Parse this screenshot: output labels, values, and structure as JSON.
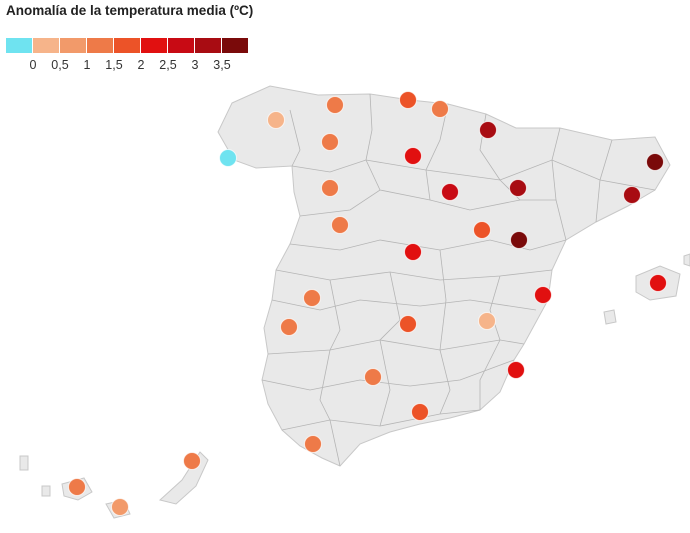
{
  "title": "Anomalía de la temperatura media (ºC)",
  "legend": {
    "colors": [
      "#6fe3f0",
      "#f6b48a",
      "#f29a6a",
      "#ee7a48",
      "#ec5328",
      "#e11010",
      "#c80a14",
      "#a80c12",
      "#7a0a0a"
    ],
    "ticks": [
      "0",
      "0,5",
      "1",
      "1,5",
      "2",
      "2,5",
      "3",
      "3,5"
    ]
  },
  "stations": [
    {
      "color": "#ee7a48"
    },
    {
      "color": "#ec5328"
    },
    {
      "color": "#ee7a48"
    },
    {
      "color": "#f6b48a"
    },
    {
      "color": "#ee7a48"
    },
    {
      "color": "#a80c12"
    },
    {
      "color": "#6fe3f0"
    },
    {
      "color": "#e11010"
    },
    {
      "color": "#7a0a0a"
    },
    {
      "color": "#ee7a48"
    },
    {
      "color": "#c80a14"
    },
    {
      "color": "#a80c12"
    },
    {
      "color": "#a80c12"
    },
    {
      "color": "#ee7a48"
    },
    {
      "color": "#ec5328"
    },
    {
      "color": "#e11010"
    },
    {
      "color": "#7a0a0a"
    },
    {
      "color": "#e11010"
    },
    {
      "color": "#e11010"
    },
    {
      "color": "#ee7a48"
    },
    {
      "color": "#ee7a48"
    },
    {
      "color": "#ec5328"
    },
    {
      "color": "#f6b48a"
    },
    {
      "color": "#ee7a48"
    },
    {
      "color": "#e11010"
    },
    {
      "color": "#ec5328"
    },
    {
      "color": "#ee7a48"
    },
    {
      "color": "#ee7a48"
    },
    {
      "color": "#ee7a48"
    },
    {
      "color": "#f29a6a"
    }
  ]
}
